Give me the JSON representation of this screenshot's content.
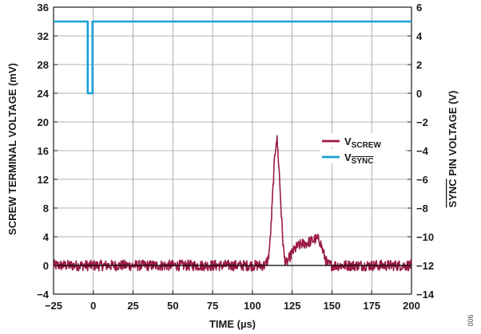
{
  "figure_id": "006",
  "chart_data": {
    "type": "line",
    "xlabel": "TIME (µs)",
    "ylabel_left": "SCREW TERMINAL VOLTAGE (mV)",
    "ylabel_right_overline": "SYNC",
    "ylabel_right_rest": " PIN VOLTAGE (V)",
    "xlim": [
      -25,
      200
    ],
    "ylim_left": [
      -4,
      36
    ],
    "ylim_right": [
      -14,
      6
    ],
    "x_ticks": [
      -25,
      0,
      25,
      50,
      75,
      100,
      125,
      150,
      175,
      200
    ],
    "x_tick_labels": [
      "−25",
      "0",
      "25",
      "50",
      "75",
      "100",
      "125",
      "150",
      "175",
      "200"
    ],
    "y_left_ticks": [
      -4,
      0,
      4,
      8,
      12,
      16,
      20,
      24,
      28,
      32,
      36
    ],
    "y_left_tick_labels": [
      "−4",
      "0",
      "4",
      "8",
      "12",
      "16",
      "20",
      "24",
      "28",
      "32",
      "36"
    ],
    "y_right_ticks": [
      -14,
      -12,
      -10,
      -8,
      -6,
      -4,
      -2,
      0,
      2,
      4,
      6
    ],
    "y_right_tick_labels": [
      "−14",
      "−12",
      "−10",
      "−8",
      "−6",
      "−4",
      "−2",
      "0",
      "2",
      "4",
      "6"
    ],
    "legend": {
      "placement": "center-right",
      "entries": [
        {
          "main": "V",
          "sub": "SCREW",
          "overline": false,
          "color": "#9b1b45"
        },
        {
          "main": "V",
          "sub": "SYNC",
          "overline": true,
          "color": "#1ba1d4"
        }
      ]
    },
    "series": [
      {
        "axis": "left",
        "color": "#9b1b45",
        "noisy": true,
        "x": [
          -25,
          60,
          95,
          108,
          110,
          111,
          112,
          113,
          114,
          115,
          115.5,
          116,
          117,
          118,
          119,
          120,
          121,
          122,
          125,
          128,
          131,
          134,
          137,
          140,
          142,
          143,
          145,
          147,
          150,
          160,
          200
        ],
        "y": [
          0,
          0,
          0,
          0,
          1,
          3,
          6.5,
          11,
          15,
          17.5,
          17.5,
          16,
          12.5,
          8,
          4,
          1.2,
          0.3,
          0.5,
          1.8,
          2.6,
          3,
          3.1,
          3.4,
          3.7,
          3.6,
          3,
          1.5,
          0.2,
          0,
          0,
          0
        ]
      },
      {
        "axis": "right",
        "color": "#1ba1d4",
        "noisy": false,
        "x": [
          -25,
          -3.5,
          -3.5,
          -0.5,
          -0.5,
          200
        ],
        "y": [
          5,
          5,
          0,
          0,
          5,
          5
        ]
      }
    ],
    "reference_line": {
      "axis": "left",
      "y": 0,
      "color": "#000000"
    }
  }
}
